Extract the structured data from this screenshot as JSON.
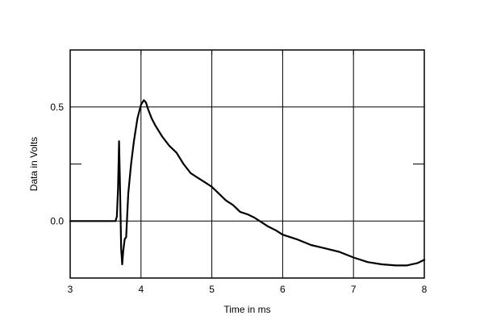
{
  "chart_data": {
    "type": "line",
    "title": "",
    "xlabel": "Time in ms",
    "ylabel": "Data in Volts",
    "xlim": [
      3,
      8
    ],
    "ylim": [
      -0.25,
      0.75
    ],
    "xticks": [
      3,
      4,
      5,
      6,
      7,
      8
    ],
    "xtick_labels": [
      "3",
      "4",
      "5",
      "6",
      "7",
      "8"
    ],
    "ytick_labels": [
      {
        "value": 0.5,
        "label": "0.5"
      },
      {
        "value": 0.0,
        "label": "0.0"
      }
    ],
    "ytick_marks": [
      0.25,
      0.75
    ],
    "grid": true,
    "line_color": "#000000",
    "series": [
      {
        "x": [
          3.0,
          3.5,
          3.64,
          3.66,
          3.675,
          3.69,
          3.7,
          3.71,
          3.72,
          3.735,
          3.75,
          3.77,
          3.79,
          3.82,
          3.86,
          3.9,
          3.95,
          4.0,
          4.04,
          4.07,
          4.1,
          4.15,
          4.2,
          4.3,
          4.4,
          4.5,
          4.6,
          4.7,
          4.8,
          4.9,
          5.0,
          5.1,
          5.2,
          5.3,
          5.4,
          5.5,
          5.6,
          5.7,
          5.8,
          5.9,
          6.0,
          6.2,
          6.4,
          6.6,
          6.8,
          7.0,
          7.2,
          7.4,
          7.6,
          7.75,
          7.9,
          8.0
        ],
        "y": [
          0.0,
          0.0,
          0.0,
          0.02,
          0.14,
          0.35,
          0.2,
          0.05,
          -0.12,
          -0.19,
          -0.13,
          -0.08,
          -0.07,
          0.12,
          0.25,
          0.35,
          0.45,
          0.51,
          0.53,
          0.52,
          0.49,
          0.45,
          0.42,
          0.37,
          0.33,
          0.3,
          0.25,
          0.21,
          0.19,
          0.17,
          0.15,
          0.12,
          0.09,
          0.07,
          0.04,
          0.03,
          0.015,
          -0.005,
          -0.025,
          -0.04,
          -0.06,
          -0.08,
          -0.105,
          -0.12,
          -0.135,
          -0.16,
          -0.18,
          -0.19,
          -0.195,
          -0.195,
          -0.185,
          -0.17
        ]
      }
    ]
  }
}
